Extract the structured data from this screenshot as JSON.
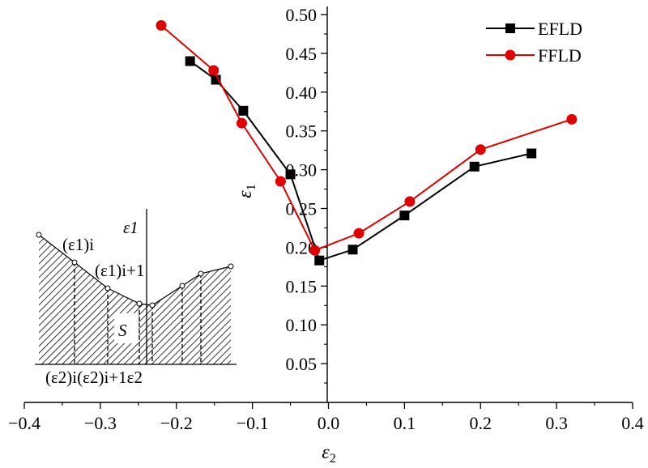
{
  "chart_data": {
    "type": "line",
    "title": "",
    "xlabel": "ε2",
    "ylabel": "ε1",
    "xlim": [
      -0.4,
      0.4
    ],
    "ylim": [
      0.0,
      0.5
    ],
    "x_ticks": [
      "−0.4",
      "−0.3",
      "−0.2",
      "−0.1",
      "0.0",
      "0.1",
      "0.2",
      "0.3",
      "0.4"
    ],
    "y_ticks": [
      "0.05",
      "0.10",
      "0.15",
      "0.20",
      "0.25",
      "0.30",
      "0.35",
      "0.40",
      "0.45",
      "0.50"
    ],
    "legend_position": "top-right",
    "series": [
      {
        "name": "EFLD",
        "color": "#000000",
        "marker": "square",
        "x": [
          -0.182,
          -0.148,
          -0.112,
          -0.05,
          -0.012,
          0.032,
          0.1,
          0.192,
          0.267
        ],
        "y": [
          0.44,
          0.416,
          0.376,
          0.294,
          0.183,
          0.197,
          0.241,
          0.304,
          0.321
        ]
      },
      {
        "name": "FFLD",
        "color": "#e00000",
        "marker": "circle",
        "x": [
          -0.22,
          -0.151,
          -0.114,
          -0.063,
          -0.018,
          0.04,
          0.107,
          0.2,
          0.32
        ],
        "y": [
          0.486,
          0.428,
          0.36,
          0.285,
          0.196,
          0.218,
          0.259,
          0.326,
          0.365
        ]
      }
    ],
    "inset": {
      "axis_label_y": "ε1",
      "region_label": "S",
      "eps1_i": "(ε1)i",
      "eps1_i1": "(ε1)i+1",
      "eps2_bottom": "(ε2)i(ε2)i+1ε2"
    }
  }
}
